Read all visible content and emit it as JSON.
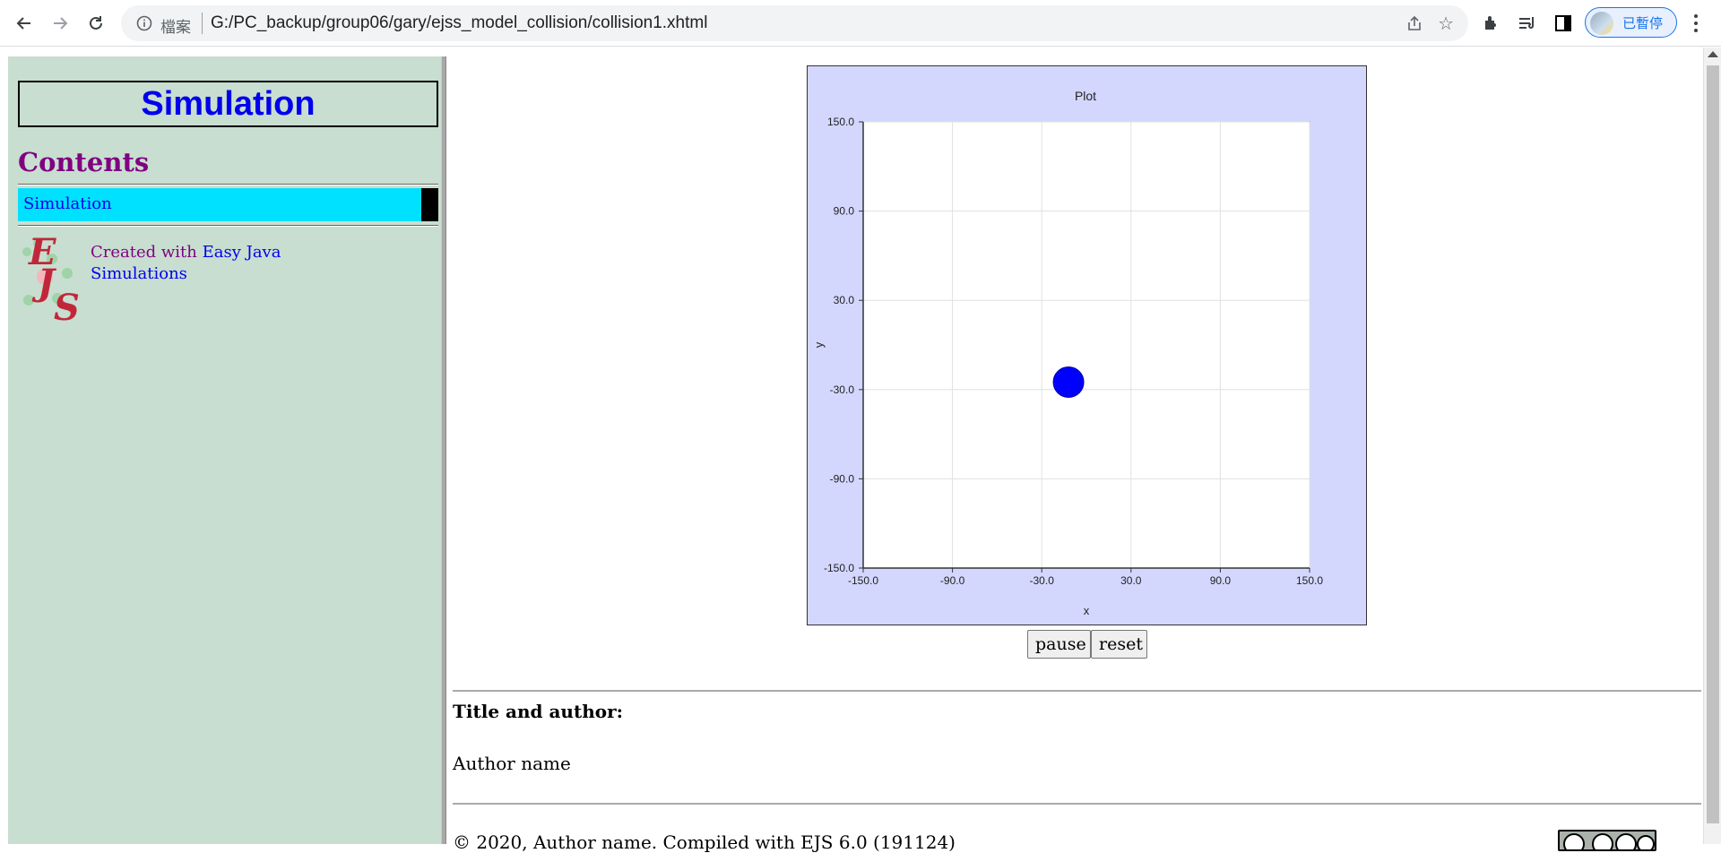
{
  "browser": {
    "scheme_label": "檔案",
    "url": "G:/PC_backup/group06/gary/ejss_model_collision/collision1.xhtml",
    "profile_label": "已暫停",
    "icons": [
      "back-arrow-icon",
      "forward-arrow-icon",
      "reload-icon",
      "info-icon",
      "share-icon",
      "star-icon",
      "extensions-icon",
      "media-controls-icon",
      "side-panel-icon",
      "more-menu-icon"
    ]
  },
  "sidebar": {
    "title": "Simulation",
    "contents_heading": "Contents",
    "nav_items": [
      {
        "label": "Simulation"
      }
    ],
    "credit_prefix": "Created with ",
    "credit_link": "Easy Java Simulations",
    "logo_letters": [
      "E",
      "J",
      "S"
    ],
    "bg_color": "#c8ded0",
    "nav_highlight_color": "#00e1ff"
  },
  "chart_data": {
    "type": "scatter",
    "title": "Plot",
    "xlabel": "x",
    "ylabel": "y",
    "xlim": [
      -150,
      150
    ],
    "ylim": [
      -150,
      150
    ],
    "xticks": [
      "-150.0",
      "-90.0",
      "-30.0",
      "30.0",
      "90.0",
      "150.0"
    ],
    "yticks": [
      "150.0",
      "90.0",
      "30.0",
      "-30.0",
      "-90.0",
      "-150.0"
    ],
    "grid": true,
    "series": [
      {
        "x": [
          -12
        ],
        "y": [
          -25
        ],
        "color": "#0000ff"
      }
    ]
  },
  "controls": {
    "pause_label": "pause",
    "reset_label": "reset"
  },
  "info": {
    "title_author_heading": "Title and author:",
    "author_name": "Author name",
    "footer": "© 2020, Author name. Compiled with EJS 6.0 (191124)"
  }
}
